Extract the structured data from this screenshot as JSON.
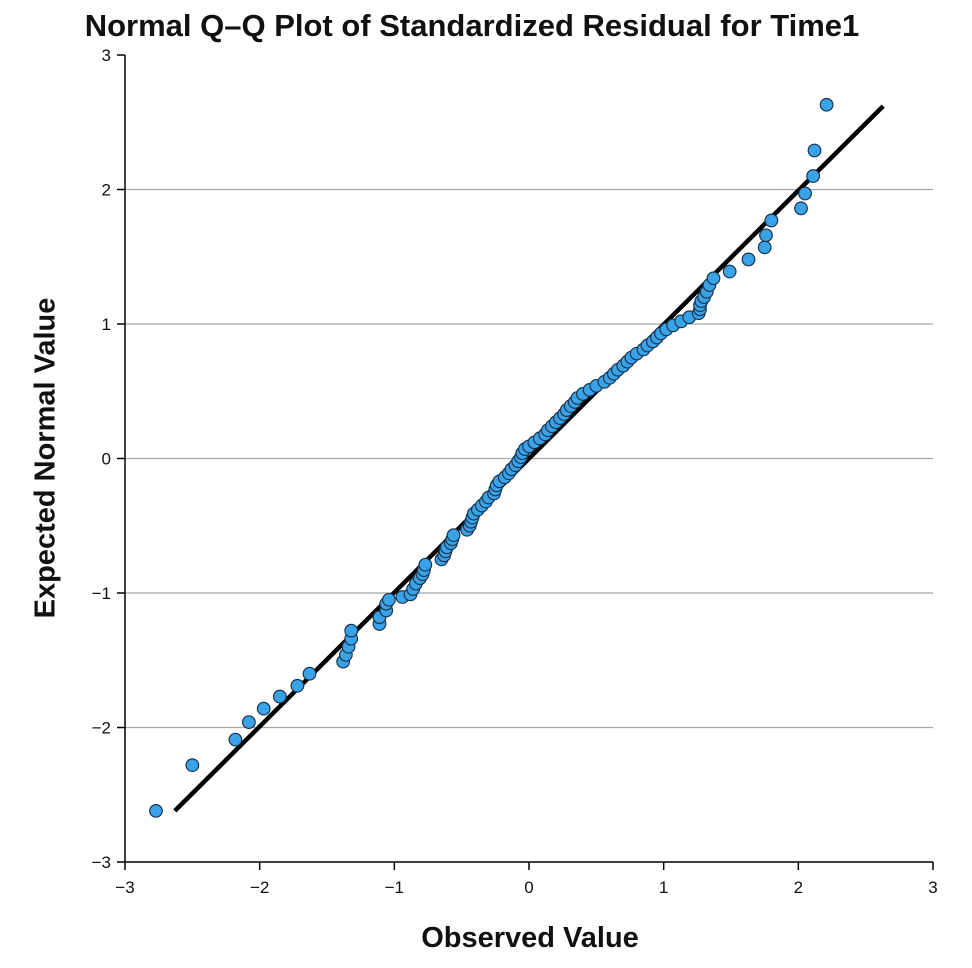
{
  "chart_data": {
    "type": "scatter",
    "title": "Normal Q–Q Plot of Standardized Residual for Time1",
    "xlabel": "Observed Value",
    "ylabel": "Expected Normal Value",
    "xlim": [
      -3,
      3
    ],
    "ylim": [
      -3,
      3
    ],
    "xticks": [
      -3,
      -2,
      -1,
      0,
      1,
      2,
      3
    ],
    "yticks": [
      -3,
      -2,
      -1,
      0,
      1,
      2,
      3
    ],
    "xtick_labels": [
      "−3",
      "−2",
      "−1",
      "0",
      "1",
      "2",
      "3"
    ],
    "ytick_labels": [
      "−3",
      "−2",
      "−1",
      "0",
      "1",
      "2",
      "3"
    ],
    "grid": "horizontal",
    "point_color": "#3aa3e8",
    "point_edge_color": "#1a3550",
    "line_color": "#000000",
    "reference_line": [
      [
        -2.63,
        -2.62
      ],
      [
        2.63,
        2.62
      ]
    ],
    "points": [
      [
        -2.77,
        -2.62
      ],
      [
        -2.5,
        -2.28
      ],
      [
        -2.18,
        -2.09
      ],
      [
        -2.08,
        -1.96
      ],
      [
        -1.97,
        -1.86
      ],
      [
        -1.85,
        -1.77
      ],
      [
        -1.72,
        -1.69
      ],
      [
        -1.63,
        -1.6
      ],
      [
        -1.38,
        -1.51
      ],
      [
        -1.36,
        -1.46
      ],
      [
        -1.34,
        -1.4
      ],
      [
        -1.32,
        -1.34
      ],
      [
        -1.32,
        -1.28
      ],
      [
        -1.11,
        -1.23
      ],
      [
        -1.11,
        -1.18
      ],
      [
        -1.06,
        -1.13
      ],
      [
        -1.06,
        -1.08
      ],
      [
        -1.04,
        -1.05
      ],
      [
        -0.94,
        -1.03
      ],
      [
        -0.88,
        -1.01
      ],
      [
        -0.86,
        -0.97
      ],
      [
        -0.84,
        -0.93
      ],
      [
        -0.81,
        -0.89
      ],
      [
        -0.79,
        -0.86
      ],
      [
        -0.78,
        -0.83
      ],
      [
        -0.77,
        -0.79
      ],
      [
        -0.65,
        -0.75
      ],
      [
        -0.63,
        -0.72
      ],
      [
        -0.62,
        -0.69
      ],
      [
        -0.61,
        -0.66
      ],
      [
        -0.58,
        -0.63
      ],
      [
        -0.57,
        -0.6
      ],
      [
        -0.56,
        -0.57
      ],
      [
        -0.46,
        -0.53
      ],
      [
        -0.44,
        -0.5
      ],
      [
        -0.43,
        -0.47
      ],
      [
        -0.42,
        -0.44
      ],
      [
        -0.41,
        -0.41
      ],
      [
        -0.38,
        -0.38
      ],
      [
        -0.35,
        -0.35
      ],
      [
        -0.32,
        -0.32
      ],
      [
        -0.3,
        -0.29
      ],
      [
        -0.26,
        -0.26
      ],
      [
        -0.25,
        -0.23
      ],
      [
        -0.24,
        -0.2
      ],
      [
        -0.22,
        -0.17
      ],
      [
        -0.18,
        -0.14
      ],
      [
        -0.15,
        -0.11
      ],
      [
        -0.13,
        -0.08
      ],
      [
        -0.1,
        -0.05
      ],
      [
        -0.08,
        -0.02
      ],
      [
        -0.06,
        0.01
      ],
      [
        -0.05,
        0.04
      ],
      [
        -0.03,
        0.07
      ],
      [
        0.0,
        0.09
      ],
      [
        0.04,
        0.12
      ],
      [
        0.08,
        0.15
      ],
      [
        0.12,
        0.18
      ],
      [
        0.14,
        0.21
      ],
      [
        0.17,
        0.24
      ],
      [
        0.2,
        0.27
      ],
      [
        0.23,
        0.3
      ],
      [
        0.26,
        0.33
      ],
      [
        0.28,
        0.36
      ],
      [
        0.31,
        0.39
      ],
      [
        0.34,
        0.42
      ],
      [
        0.36,
        0.45
      ],
      [
        0.4,
        0.48
      ],
      [
        0.45,
        0.51
      ],
      [
        0.5,
        0.54
      ],
      [
        0.56,
        0.57
      ],
      [
        0.6,
        0.6
      ],
      [
        0.63,
        0.63
      ],
      [
        0.66,
        0.66
      ],
      [
        0.7,
        0.69
      ],
      [
        0.73,
        0.72
      ],
      [
        0.76,
        0.75
      ],
      [
        0.8,
        0.78
      ],
      [
        0.85,
        0.81
      ],
      [
        0.88,
        0.84
      ],
      [
        0.92,
        0.87
      ],
      [
        0.95,
        0.9
      ],
      [
        0.98,
        0.93
      ],
      [
        1.02,
        0.96
      ],
      [
        1.07,
        0.99
      ],
      [
        1.13,
        1.02
      ],
      [
        1.19,
        1.05
      ],
      [
        1.26,
        1.08
      ],
      [
        1.27,
        1.11
      ],
      [
        1.27,
        1.14
      ],
      [
        1.28,
        1.17
      ],
      [
        1.3,
        1.2
      ],
      [
        1.32,
        1.24
      ],
      [
        1.34,
        1.29
      ],
      [
        1.37,
        1.34
      ],
      [
        1.49,
        1.39
      ],
      [
        1.63,
        1.48
      ],
      [
        1.75,
        1.57
      ],
      [
        1.76,
        1.66
      ],
      [
        1.8,
        1.77
      ],
      [
        2.02,
        1.86
      ],
      [
        2.05,
        1.97
      ],
      [
        2.11,
        2.1
      ],
      [
        2.12,
        2.29
      ],
      [
        2.21,
        2.63
      ]
    ]
  }
}
